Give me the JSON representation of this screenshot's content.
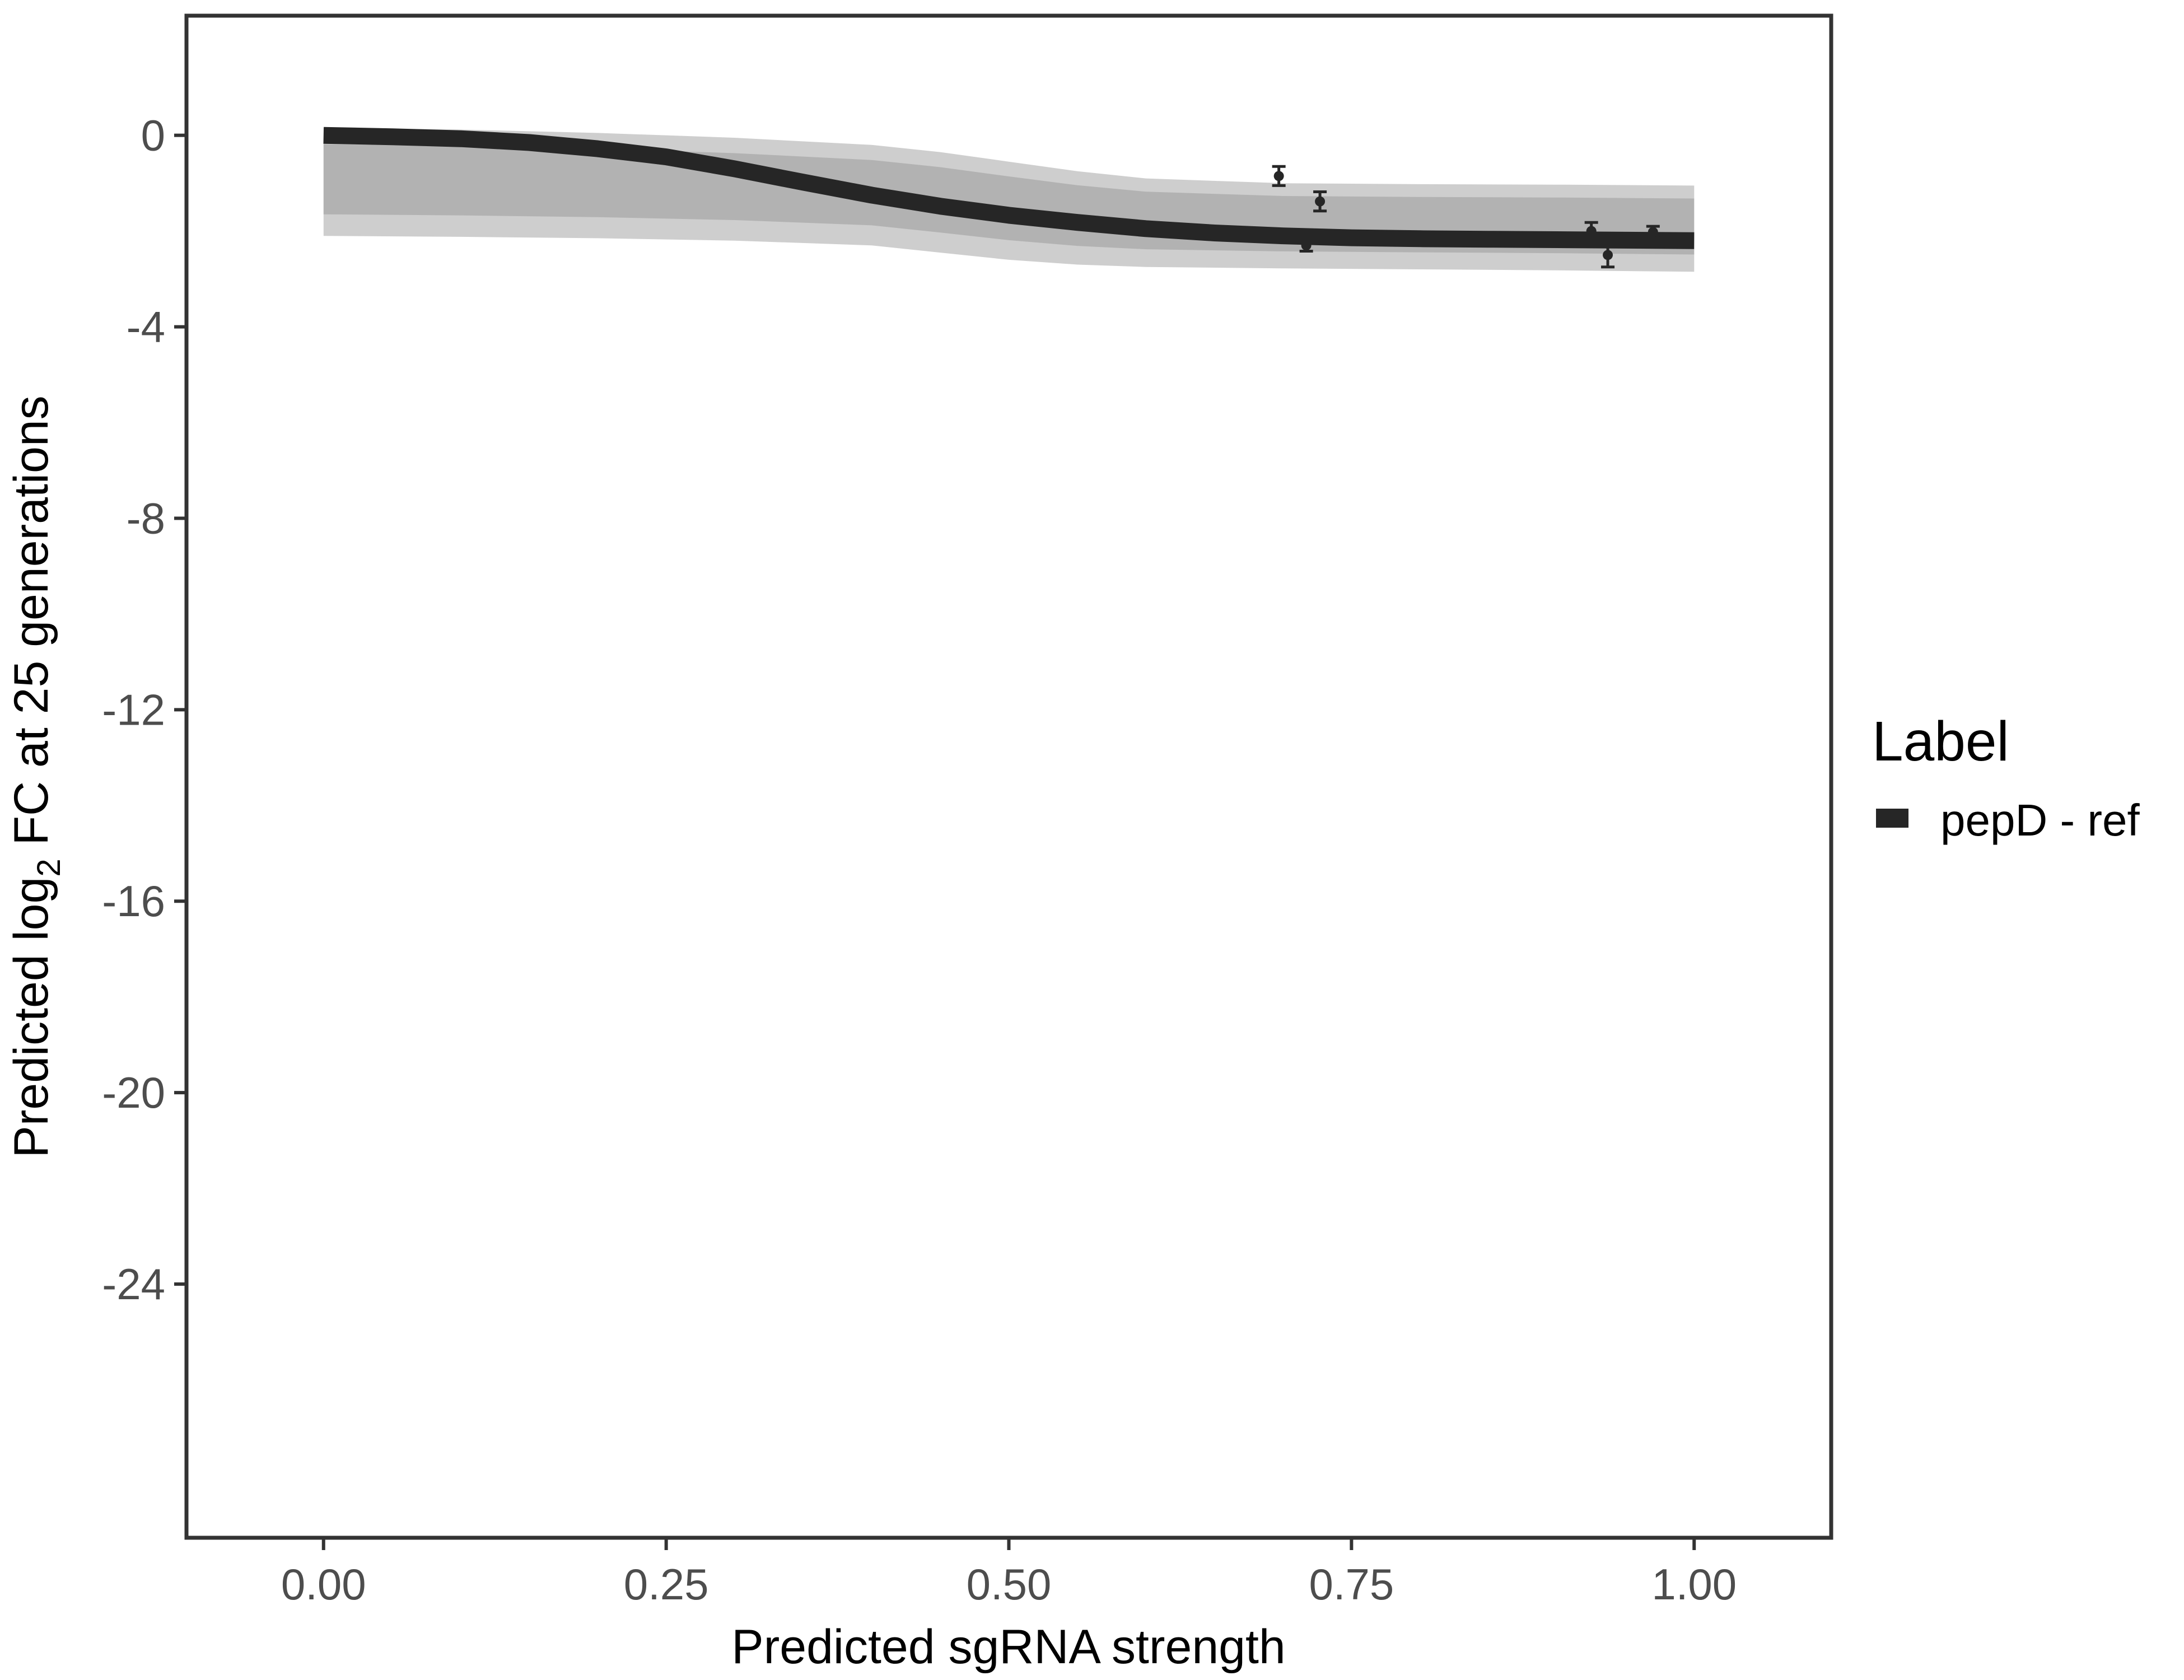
{
  "chart_data": {
    "type": "line",
    "xlabel": "Predicted sgRNA strength",
    "ylabel": {
      "prefix": "Predicted  log",
      "subscript": "2",
      "suffix": " FC at 25 generations"
    },
    "xlim": [
      -0.1,
      1.1
    ],
    "ylim": [
      -29.3,
      2.5
    ],
    "x_ticks": [
      0.0,
      0.25,
      0.5,
      0.75,
      1.0
    ],
    "x_tick_labels": [
      "0.00",
      "0.25",
      "0.50",
      "0.75",
      "1.00"
    ],
    "y_ticks": [
      0,
      -4,
      -8,
      -12,
      -16,
      -20,
      -24
    ],
    "y_tick_labels": [
      "0",
      "-4",
      "-8",
      "-12",
      "-16",
      "-20",
      "-24"
    ],
    "grid": false,
    "legend": {
      "title": "Label",
      "position": "right",
      "entries": [
        {
          "label": "pepD - ref",
          "color": "#262626"
        }
      ]
    },
    "series": [
      {
        "name": "pepD - ref",
        "color": "#262626",
        "x": [
          0.0,
          0.05,
          0.1,
          0.15,
          0.2,
          0.25,
          0.3,
          0.35,
          0.4,
          0.45,
          0.5,
          0.55,
          0.6,
          0.65,
          0.7,
          0.75,
          0.8,
          0.85,
          0.9,
          0.95,
          1.0
        ],
        "y": [
          0.0,
          -0.03,
          -0.07,
          -0.15,
          -0.28,
          -0.45,
          -0.7,
          -0.98,
          -1.25,
          -1.48,
          -1.67,
          -1.82,
          -1.95,
          -2.04,
          -2.1,
          -2.14,
          -2.16,
          -2.17,
          -2.18,
          -2.19,
          -2.2
        ]
      }
    ],
    "posterior_band": {
      "color": "#a6a6a6",
      "x": [
        0.0,
        0.1,
        0.2,
        0.3,
        0.4,
        0.45,
        0.5,
        0.55,
        0.6,
        0.7,
        0.8,
        0.9,
        1.0
      ],
      "upper": [
        0.15,
        0.12,
        0.05,
        -0.05,
        -0.2,
        -0.35,
        -0.55,
        -0.75,
        -0.9,
        -1.0,
        -1.02,
        -1.03,
        -1.05
      ],
      "lower": [
        -2.1,
        -2.12,
        -2.15,
        -2.2,
        -2.3,
        -2.45,
        -2.6,
        -2.7,
        -2.75,
        -2.78,
        -2.8,
        -2.82,
        -2.85
      ]
    },
    "points": [
      {
        "x": 0.697,
        "y": -0.85,
        "err": 0.2
      },
      {
        "x": 0.717,
        "y": -2.3,
        "err": 0.12
      },
      {
        "x": 0.727,
        "y": -1.38,
        "err": 0.2
      },
      {
        "x": 0.925,
        "y": -2.0,
        "err": 0.18
      },
      {
        "x": 0.937,
        "y": -2.5,
        "err": 0.25
      },
      {
        "x": 0.97,
        "y": -2.02,
        "err": 0.12
      }
    ]
  }
}
